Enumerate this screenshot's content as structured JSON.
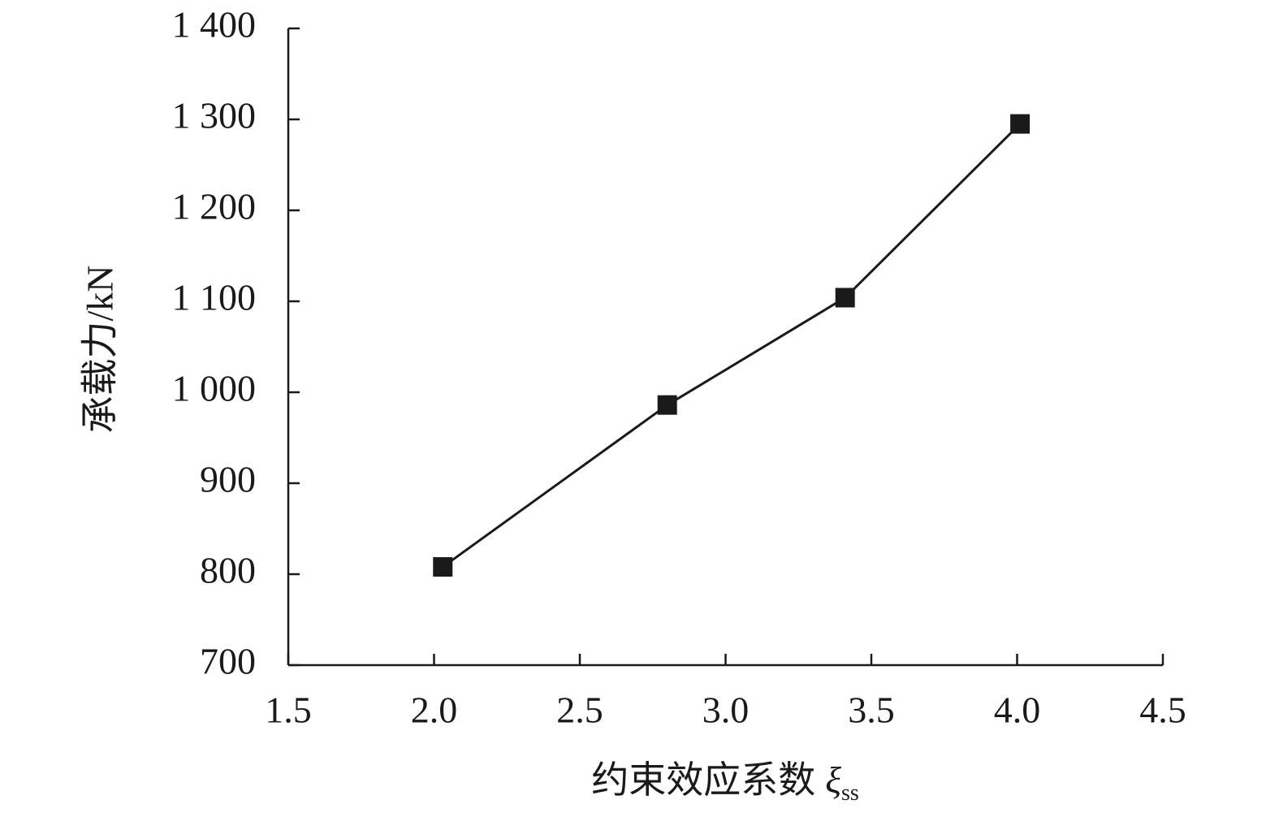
{
  "chart_data": {
    "type": "line",
    "x_label": "约束效应系数",
    "x_label_symbol": "ξ",
    "x_label_subscript": "ss",
    "y_label": "承载力/kN",
    "x": [
      2.03,
      2.8,
      3.41,
      4.01
    ],
    "series": [
      {
        "color": "#1a1a1a",
        "marker": "square",
        "values": [
          808,
          986,
          1104,
          1295
        ]
      }
    ],
    "xlim": [
      1.5,
      4.5
    ],
    "xticks": [
      1.5,
      {
        "value": 2,
        "label": "2.0"
      },
      2.5,
      {
        "value": 3,
        "label": "3.0"
      },
      3.5,
      {
        "value": 4,
        "label": "4.0"
      },
      4.5
    ],
    "ylim": [
      700,
      1400
    ],
    "yticks": [
      700,
      800,
      900,
      {
        "value": 1000,
        "label": "1 000"
      },
      {
        "value": 1100,
        "label": "1 100"
      },
      {
        "value": 1200,
        "label": "1 200"
      },
      {
        "value": 1300,
        "label": "1 300"
      },
      {
        "value": 1400,
        "label": "1 400"
      }
    ],
    "grid": false
  }
}
